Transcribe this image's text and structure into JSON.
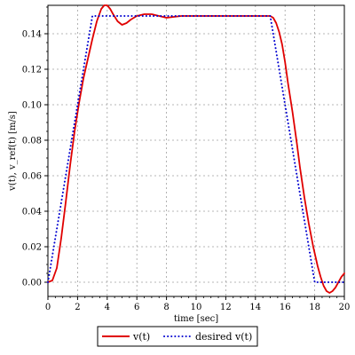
{
  "chart_data": {
    "type": "line",
    "xlabel": "time [sec]",
    "ylabel": "v(t), v_ref(t) [m/s]",
    "xlim": [
      0,
      20
    ],
    "ylim": [
      -0.008,
      0.156
    ],
    "xticks": [
      0,
      2,
      4,
      6,
      8,
      10,
      12,
      14,
      16,
      18,
      20
    ],
    "yticks": [
      0.0,
      0.02,
      0.04,
      0.06,
      0.08,
      0.1,
      0.12,
      0.14
    ],
    "xtick_labels": [
      "0",
      "2",
      "4",
      "6",
      "8",
      "10",
      "12",
      "14",
      "16",
      "18",
      "20"
    ],
    "ytick_labels": [
      "0.00",
      "0.02",
      "0.04",
      "0.06",
      "0.08",
      "0.10",
      "0.12",
      "0.14"
    ],
    "grid": true,
    "legend_position": "bottom-center",
    "series": [
      {
        "name": "v(t)",
        "color": "#e00000",
        "style": "solid",
        "x": [
          0,
          0.3,
          0.6,
          0.9,
          1.2,
          1.5,
          1.8,
          2.1,
          2.4,
          2.7,
          3.0,
          3.3,
          3.6,
          3.8,
          4.0,
          4.2,
          4.4,
          4.7,
          5.0,
          5.3,
          5.6,
          6.0,
          6.5,
          7.0,
          7.5,
          8.0,
          9.0,
          10.0,
          11.0,
          12.0,
          13.0,
          14.0,
          14.6,
          15.0,
          15.2,
          15.4,
          15.6,
          15.8,
          16.0,
          16.2,
          16.5,
          16.8,
          17.0,
          17.3,
          17.6,
          17.9,
          18.2,
          18.4,
          18.6,
          18.8,
          19.0,
          19.2,
          19.4,
          19.6,
          19.8,
          20.0
        ],
        "y": [
          0.0,
          0.001,
          0.008,
          0.025,
          0.045,
          0.066,
          0.085,
          0.101,
          0.115,
          0.126,
          0.137,
          0.147,
          0.154,
          0.156,
          0.156,
          0.154,
          0.151,
          0.147,
          0.145,
          0.146,
          0.148,
          0.15,
          0.151,
          0.151,
          0.15,
          0.149,
          0.15,
          0.15,
          0.15,
          0.15,
          0.15,
          0.15,
          0.15,
          0.15,
          0.149,
          0.146,
          0.141,
          0.134,
          0.124,
          0.112,
          0.096,
          0.078,
          0.065,
          0.048,
          0.033,
          0.02,
          0.009,
          0.003,
          -0.002,
          -0.005,
          -0.006,
          -0.005,
          -0.003,
          0.0,
          0.003,
          0.005
        ]
      },
      {
        "name": "desired v(t)",
        "color": "#0000d0",
        "style": "dotted",
        "x": [
          0,
          0.5,
          1.0,
          1.5,
          2.0,
          2.5,
          2.8,
          3.0,
          15.0,
          15.5,
          16.0,
          16.5,
          17.0,
          17.5,
          18.0,
          18.5,
          20.0
        ],
        "y": [
          0.0,
          0.025,
          0.05,
          0.075,
          0.1,
          0.125,
          0.14,
          0.15,
          0.15,
          0.125,
          0.1,
          0.075,
          0.05,
          0.025,
          0.0,
          0.0,
          0.0
        ]
      }
    ]
  }
}
